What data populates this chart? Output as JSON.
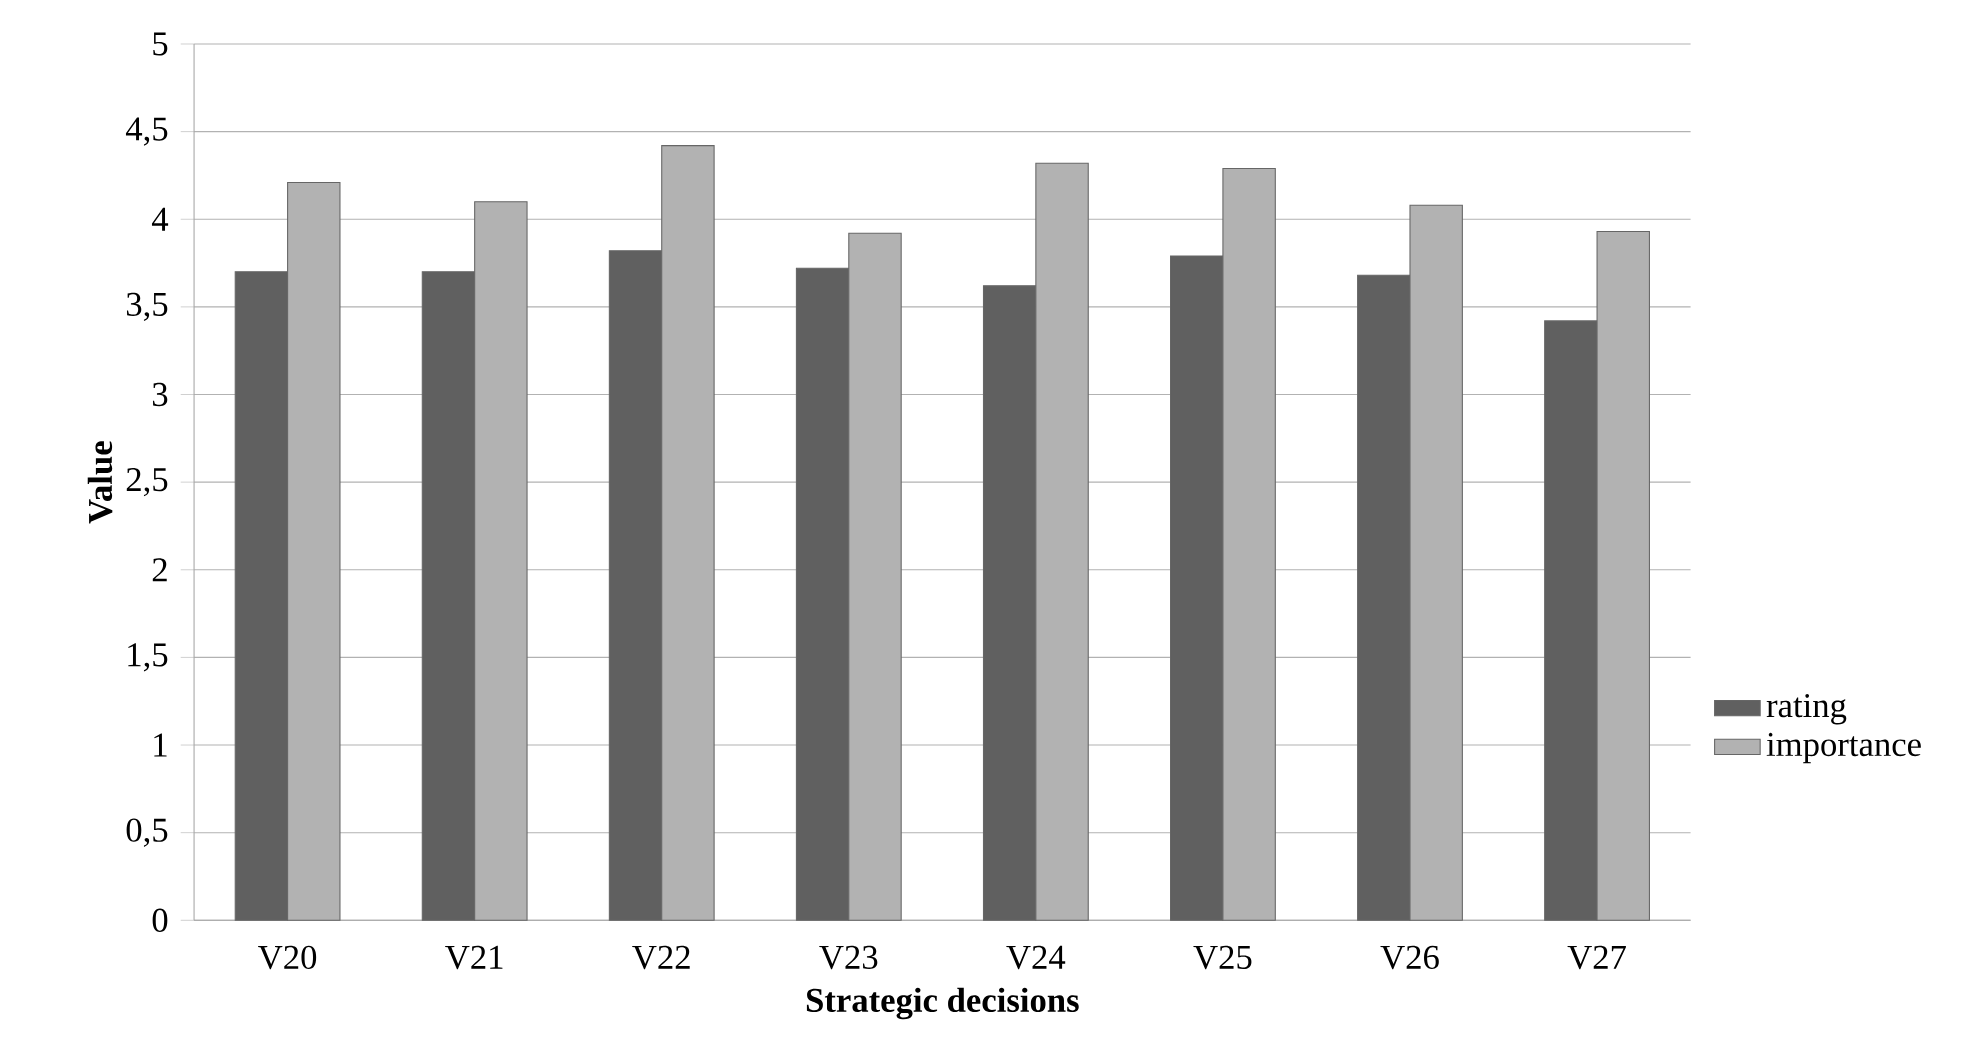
{
  "chart_data": {
    "type": "bar",
    "xlabel": "Strategic decisions",
    "ylabel": "Value",
    "categories": [
      "V20",
      "V21",
      "V22",
      "V23",
      "V24",
      "V25",
      "V26",
      "V27"
    ],
    "series": [
      {
        "name": "rating",
        "color": "#606060",
        "values": [
          3.7,
          3.7,
          3.82,
          3.72,
          3.62,
          3.79,
          3.68,
          3.42
        ]
      },
      {
        "name": "importance",
        "color": "#b2b2b2",
        "values": [
          4.21,
          4.1,
          4.42,
          3.92,
          4.32,
          4.29,
          4.08,
          3.93
        ]
      }
    ],
    "ylim": [
      0,
      5
    ],
    "yticks": [
      0,
      {
        "value": 0.5,
        "label": "0,5"
      },
      1,
      {
        "value": 1.5,
        "label": "1,5"
      },
      2,
      {
        "value": 2.5,
        "label": "2,5"
      },
      3,
      {
        "value": 3.5,
        "label": "3,5"
      },
      4,
      {
        "value": 4.5,
        "label": "4,5"
      },
      5
    ],
    "grid": "y",
    "legend": "right"
  }
}
